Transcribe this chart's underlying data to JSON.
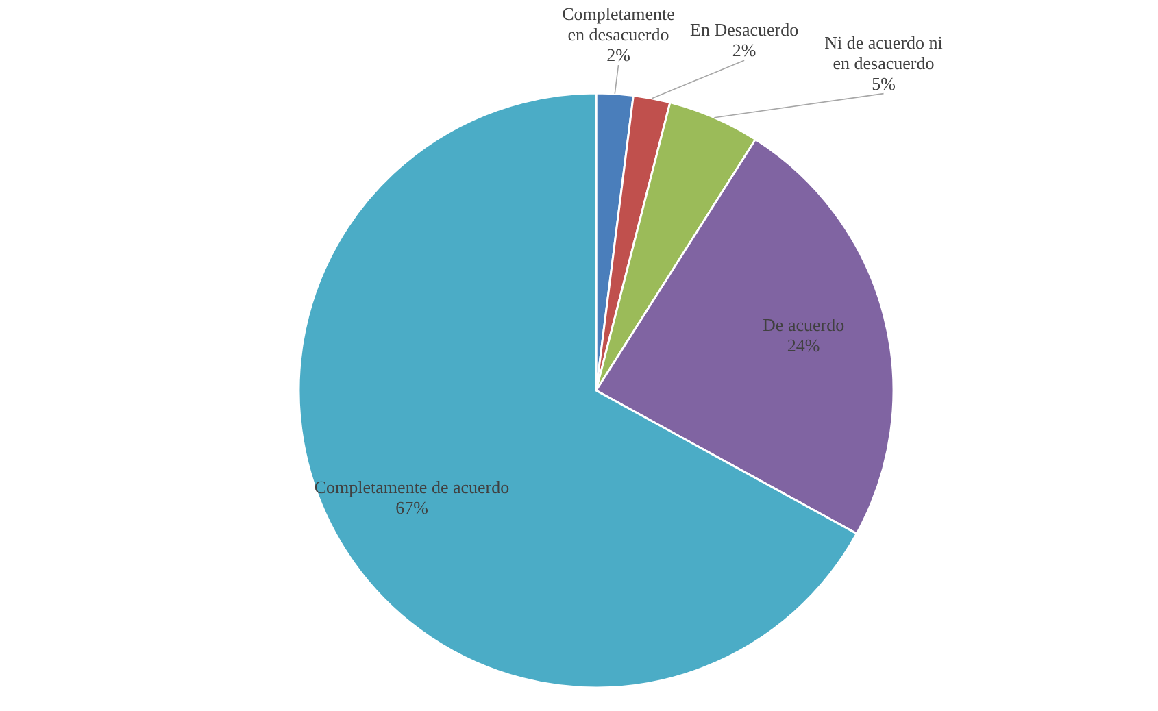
{
  "chart_data": {
    "type": "pie",
    "categories": [
      "Completamente\nen desacuerdo",
      "En Desacuerdo",
      "Ni de acuerdo ni\nen desacuerdo",
      "De acuerdo",
      "Completamente de acuerdo"
    ],
    "values": [
      2,
      2,
      5,
      24,
      67
    ],
    "value_labels": [
      "2%",
      "2%",
      "5%",
      "24%",
      "67%"
    ],
    "colors": [
      "#4a7ebb",
      "#c0504d",
      "#9bbb59",
      "#8064a2",
      "#4bacc6"
    ]
  }
}
